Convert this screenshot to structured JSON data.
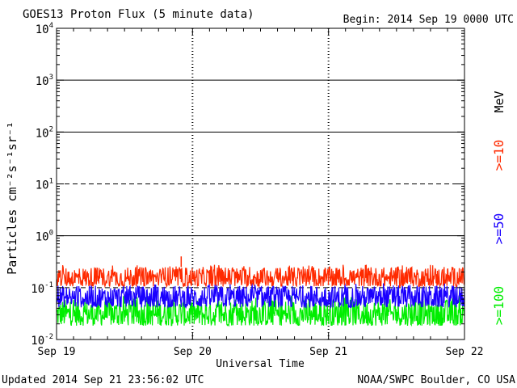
{
  "chart_data": {
    "type": "line",
    "title": "GOES13 Proton Flux (5 minute data)",
    "subtitle": "Begin: 2014 Sep 19 0000 UTC",
    "xlabel": "Universal Time",
    "ylabel": "Particles cm⁻²s⁻¹sr⁻¹",
    "y_scale": "log",
    "ylim": [
      0.01,
      10000
    ],
    "xlim": [
      "2014-09-19",
      "2014-09-22"
    ],
    "y_ticks": [
      {
        "base": "10",
        "exp": "4",
        "value": 10000
      },
      {
        "base": "10",
        "exp": "3",
        "value": 1000
      },
      {
        "base": "10",
        "exp": "2",
        "value": 100
      },
      {
        "base": "10",
        "exp": "1",
        "value": 10
      },
      {
        "base": "10",
        "exp": "0",
        "value": 1
      },
      {
        "base": "10",
        "exp": "-1",
        "value": 0.1
      },
      {
        "base": "10",
        "exp": "-2",
        "value": 0.01
      }
    ],
    "x_ticks": [
      {
        "label": "Sep 19",
        "date": "2014-09-19"
      },
      {
        "label": "Sep 20",
        "date": "2014-09-20"
      },
      {
        "label": "Sep 21",
        "date": "2014-09-21"
      },
      {
        "label": "Sep 22",
        "date": "2014-09-22"
      }
    ],
    "series": [
      {
        "name": ">=10",
        "color": "#ff2a00",
        "typical_range": [
          0.09,
          0.25
        ],
        "peak": 0.4,
        "peak_date": "2014-09-19T22:00"
      },
      {
        "name": ">=50",
        "color": "#1a00ff",
        "typical_range": [
          0.035,
          0.11
        ],
        "peak": 0.15
      },
      {
        "name": ">=100",
        "color": "#00ee00",
        "typical_range": [
          0.015,
          0.06
        ],
        "peak": 0.07
      }
    ],
    "unit_label": "MeV",
    "thresholds": [
      {
        "value": 10,
        "style": "dashed"
      },
      {
        "value": 0.1,
        "style": "dashed"
      }
    ],
    "grid": true
  },
  "footer": {
    "updated": "Updated 2014 Sep 21 23:56:02 UTC",
    "credit": "NOAA/SWPC Boulder, CO USA"
  }
}
